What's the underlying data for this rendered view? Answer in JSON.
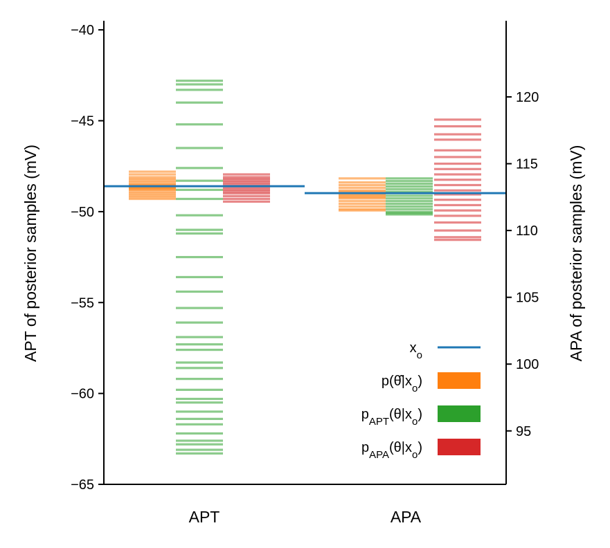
{
  "chart_data": {
    "type": "bar",
    "categories": [
      "APT",
      "APA"
    ],
    "left_axis": {
      "label": "APT of posterior samples (mV)",
      "ylim": [
        -65,
        -39.5
      ],
      "ticks": [
        -40,
        -45,
        -50,
        -55,
        -60,
        -65
      ],
      "tick_labels": [
        "−40",
        "−45",
        "−50",
        "−55",
        "−60",
        "−65"
      ]
    },
    "right_axis": {
      "label": "APA of posterior samples (mV)",
      "ylim": [
        91,
        125.7
      ],
      "ticks": [
        95,
        100,
        105,
        110,
        115,
        120
      ],
      "tick_labels": [
        "95",
        "100",
        "105",
        "110",
        "115",
        "120"
      ]
    },
    "observed": {
      "name": "x",
      "name_sub": "o",
      "apt": -48.6,
      "apa": 112.8,
      "color": "#1f77b4"
    },
    "series": [
      {
        "name_parts": [
          "p(",
          "θ̂",
          "|x",
          "o",
          ")"
        ],
        "color": "#ff7f0e",
        "apt_samples": [
          -47.8,
          -47.95,
          -48.1,
          -48.2,
          -48.3,
          -48.4,
          -48.5,
          -48.55,
          -48.6,
          -48.65,
          -48.7,
          -48.75,
          -48.8,
          -48.9,
          -49.0,
          -49.1,
          -49.2,
          -49.3
        ],
        "apa_samples": [
          113.9,
          113.6,
          113.4,
          113.2,
          113.0,
          112.9,
          112.8,
          112.7,
          112.6,
          112.5,
          112.4,
          112.2,
          112.0,
          111.8,
          111.6,
          111.5
        ]
      },
      {
        "name_parts": [
          "p",
          "APT",
          "(θ|x",
          "o",
          ")"
        ],
        "color": "#2ca02c",
        "apt_samples": [
          -42.8,
          -43.0,
          -43.3,
          -44.0,
          -45.2,
          -46.5,
          -47.6,
          -48.3,
          -48.8,
          -49.3,
          -50.2,
          -51.0,
          -51.2,
          -52.5,
          -53.6,
          -54.4,
          -55.3,
          -56.1,
          -56.9,
          -57.3,
          -57.6,
          -58.3,
          -58.6,
          -59.2,
          -59.8,
          -60.3,
          -60.5,
          -61.0,
          -61.4,
          -61.7,
          -62.2,
          -62.6,
          -62.8,
          -63.1,
          -63.3
        ],
        "apa_samples": [
          113.9,
          113.7,
          113.5,
          113.3,
          113.1,
          112.9,
          112.8,
          112.6,
          112.4,
          112.2,
          112.0,
          111.8,
          111.6,
          111.4,
          111.3,
          111.2
        ]
      },
      {
        "name_parts": [
          "p",
          "APA",
          "(θ|x",
          "o",
          ")"
        ],
        "color": "#d62728",
        "apt_samples": [
          -47.95,
          -48.1,
          -48.2,
          -48.3,
          -48.4,
          -48.5,
          -48.6,
          -48.7,
          -48.8,
          -48.9,
          -49.0,
          -49.15,
          -49.3,
          -49.45
        ],
        "apa_samples": [
          118.3,
          117.8,
          117.2,
          116.8,
          116.0,
          115.5,
          115.0,
          114.6,
          114.2,
          113.8,
          113.4,
          113.0,
          112.7,
          112.3,
          111.9,
          111.5,
          111.1,
          110.6,
          110.0,
          109.5,
          109.3
        ]
      }
    ],
    "legend_position": "lower-right"
  }
}
